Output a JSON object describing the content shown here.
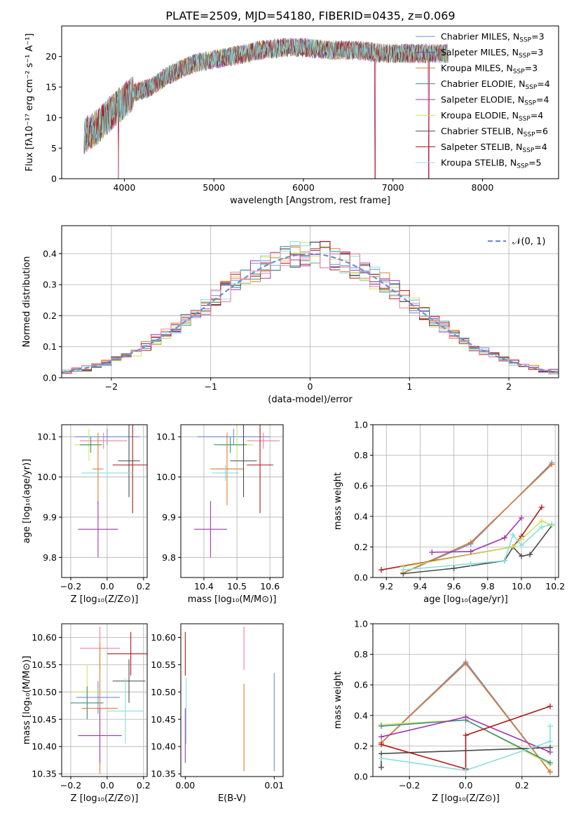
{
  "figure_title": "PLATE=2509, MJD=54180, FIBERID=0435, z=0.069",
  "colors": {
    "c0": "#6a8fd6",
    "c1": "#9f37b0",
    "c2": "#cde561",
    "c3": "#4a4a4a",
    "c4": "#b01818",
    "c5": "#88dfe0",
    "c6": "#3f8f80",
    "c7": "#e07b2a",
    "c8": "#ee7fa0"
  },
  "chart_data": [
    {
      "id": "spectrum",
      "type": "line",
      "title": "PLATE=2509, MJD=54180, FIBERID=0435, z=0.069",
      "xlabel": "wavelength [Angstrom, rest frame]",
      "ylabel": "Flux [fλ10⁻¹⁷ erg cm⁻² s⁻¹ A⁻¹]",
      "xlim": [
        3300,
        8850
      ],
      "ylim": [
        0,
        25
      ],
      "xticks": [
        4000,
        5000,
        6000,
        7000,
        8000
      ],
      "yticks": [
        0,
        5,
        10,
        15,
        20
      ],
      "legend_placement": "top-right",
      "continuum": [
        [
          3550,
          7
        ],
        [
          3700,
          8.5
        ],
        [
          3900,
          11.5
        ],
        [
          4100,
          14
        ],
        [
          4300,
          15
        ],
        [
          4500,
          17
        ],
        [
          4800,
          19
        ],
        [
          5000,
          19.5
        ],
        [
          5200,
          20
        ],
        [
          5500,
          21
        ],
        [
          5800,
          21.5
        ],
        [
          6000,
          21.5
        ],
        [
          6300,
          21
        ],
        [
          6600,
          21
        ],
        [
          6900,
          20.5
        ],
        [
          7200,
          20.5
        ],
        [
          7600,
          20.5
        ]
      ],
      "dips": [
        [
          3934,
          0
        ],
        [
          6800,
          0
        ],
        [
          7400,
          0
        ]
      ],
      "series": [
        {
          "name": "Chabrier MILES, N",
          "sub": "SSP",
          "eq": "=3",
          "color_key": "c0"
        },
        {
          "name": "Salpeter MILES, N",
          "sub": "SSP",
          "eq": "=3",
          "color_key": "c1"
        },
        {
          "name": "Kroupa MILES, N",
          "sub": "SSP",
          "eq": "=3",
          "color_key": "c7"
        },
        {
          "name": "Chabrier ELODIE, N",
          "sub": "SSP",
          "eq": "=4",
          "color_key": "c6"
        },
        {
          "name": "Salpeter ELODIE, N",
          "sub": "SSP",
          "eq": "=4",
          "color_key": "c1"
        },
        {
          "name": "Kroupa ELODIE, N",
          "sub": "SSP",
          "eq": "=4",
          "color_key": "c2"
        },
        {
          "name": "Chabrier STELIB, N",
          "sub": "SSP",
          "eq": "=6",
          "color_key": "c3"
        },
        {
          "name": "Salpeter STELIB, N",
          "sub": "SSP",
          "eq": "=4",
          "color_key": "c4"
        },
        {
          "name": "Kroupa STELIB, N",
          "sub": "SSP",
          "eq": "=5",
          "color_key": "c5"
        }
      ]
    },
    {
      "id": "residuals",
      "type": "line",
      "xlabel": "(data-model)/error",
      "ylabel": "Normed distribution",
      "xlim": [
        -2.5,
        2.5
      ],
      "ylim": [
        0,
        0.49
      ],
      "xticks": [
        -2,
        -1,
        0,
        1,
        2
      ],
      "yticks": [
        0.0,
        0.1,
        0.2,
        0.3,
        0.4
      ],
      "grid": true,
      "bin_width": 0.1,
      "hist_color_keys": [
        "c0",
        "c1",
        "c7",
        "c6",
        "c2",
        "c3",
        "c4",
        "c5",
        "c8"
      ],
      "legend_placement": "top-right",
      "legend": [
        {
          "name": "𝒩(0, 1)",
          "color": "#6a8fd6",
          "dashed": true
        }
      ]
    },
    {
      "id": "age-vs-z",
      "type": "scatter",
      "xlabel": "Z [log₁₀(Z/Z⊙)]",
      "ylabel": "age  [log₁₀(age/yr)]",
      "xlim": [
        -0.25,
        0.22
      ],
      "ylim": [
        9.75,
        10.13
      ],
      "xticks": [
        -0.2,
        0.0,
        0.2
      ],
      "yticks": [
        9.8,
        9.9,
        10.0,
        10.1
      ],
      "grid": true,
      "points": [
        {
          "color_key": "c0",
          "x": 0,
          "xerr": 0.18,
          "y": 10.1,
          "yerr": 0.02
        },
        {
          "color_key": "c8",
          "x": -0.02,
          "xerr": 0.13,
          "y": 10.09,
          "yerr": 0.02
        },
        {
          "color_key": "c2",
          "x": -0.1,
          "xerr": 0.08,
          "y": 10.08,
          "yerr": 0.04
        },
        {
          "color_key": "c6",
          "x": -0.09,
          "xerr": 0.06,
          "y": 10.08,
          "yerr": 0.02
        },
        {
          "color_key": "c7",
          "x": -0.05,
          "xerr": 0.03,
          "y": 10.02,
          "yerr": 0.09
        },
        {
          "color_key": "c3",
          "x": 0.12,
          "xerr": 0.06,
          "y": 10.04,
          "yerr": 0.09
        },
        {
          "color_key": "c4",
          "x": 0.14,
          "xerr": 0.11,
          "y": 10.03,
          "yerr": 0.12
        },
        {
          "color_key": "c5",
          "x": 0,
          "xerr": 0.14,
          "y": 10.01,
          "yerr": 0.02
        },
        {
          "color_key": "c1",
          "x": -0.05,
          "xerr": 0.11,
          "y": 9.87,
          "yerr": 0.07
        }
      ]
    },
    {
      "id": "age-vs-mass",
      "type": "scatter",
      "xlabel": "mass [log₁₀(M/M⊙)]",
      "ylabel": "",
      "xlim": [
        10.33,
        10.64
      ],
      "ylim": [
        9.75,
        10.13
      ],
      "xticks": [
        10.4,
        10.5,
        10.6
      ],
      "yticks": [
        9.8,
        9.9,
        10.0,
        10.1
      ],
      "grid": true,
      "points": [
        {
          "color_key": "c0",
          "x": 10.49,
          "xerr": 0.11,
          "y": 10.1,
          "yerr": 0.02
        },
        {
          "color_key": "c8",
          "x": 10.58,
          "xerr": 0.05,
          "y": 10.09,
          "yerr": 0.02
        },
        {
          "color_key": "c2",
          "x": 10.5,
          "xerr": 0.05,
          "y": 10.08,
          "yerr": 0.04
        },
        {
          "color_key": "c6",
          "x": 10.48,
          "xerr": 0.05,
          "y": 10.08,
          "yerr": 0.02
        },
        {
          "color_key": "c7",
          "x": 10.47,
          "xerr": 0.05,
          "y": 10.02,
          "yerr": 0.09
        },
        {
          "color_key": "c3",
          "x": 10.52,
          "xerr": 0.04,
          "y": 10.04,
          "yerr": 0.09
        },
        {
          "color_key": "c4",
          "x": 10.57,
          "xerr": 0.04,
          "y": 10.03,
          "yerr": 0.12
        },
        {
          "color_key": "c5",
          "x": 10.465,
          "xerr": 0.04,
          "y": 10.01,
          "yerr": 0.02
        },
        {
          "color_key": "c1",
          "x": 10.42,
          "xerr": 0.05,
          "y": 9.87,
          "yerr": 0.07
        }
      ]
    },
    {
      "id": "mass-weight-vs-age",
      "type": "line",
      "xlabel": "age  [log₁₀(age/yr)]",
      "ylabel": "mass weight",
      "xlim": [
        9.12,
        10.22
      ],
      "ylim": [
        0,
        1
      ],
      "xticks": [
        9.2,
        9.4,
        9.6,
        9.8,
        10.0,
        10.2
      ],
      "yticks": [
        0.0,
        0.2,
        0.4,
        0.6,
        0.8,
        1.0
      ],
      "grid": true,
      "series": [
        {
          "color_key": "c0",
          "x": [
            9.3,
            9.7,
            10.18
          ],
          "y": [
            0.03,
            0.22,
            0.75
          ]
        },
        {
          "color_key": "c7",
          "x": [
            9.3,
            9.7,
            10.18
          ],
          "y": [
            0.03,
            0.23,
            0.74
          ]
        },
        {
          "color_key": "c1",
          "x": [
            9.47,
            9.7,
            9.9,
            10.0
          ],
          "y": [
            0.165,
            0.17,
            0.26,
            0.39
          ]
        },
        {
          "color_key": "c3",
          "x": [
            9.3,
            9.6,
            9.9,
            9.95,
            10.0,
            10.05,
            10.18
          ],
          "y": [
            0.025,
            0.06,
            0.11,
            0.2,
            0.14,
            0.15,
            0.34
          ]
        },
        {
          "color_key": "c4",
          "x": [
            9.17,
            9.95,
            10.0,
            10.12
          ],
          "y": [
            0.05,
            0.2,
            0.27,
            0.46
          ]
        },
        {
          "color_key": "c2",
          "x": [
            9.3,
            9.95,
            10.0,
            10.12,
            10.18
          ],
          "y": [
            0.07,
            0.2,
            0.25,
            0.37,
            0.34
          ]
        },
        {
          "color_key": "c5",
          "x": [
            9.3,
            9.7,
            9.9,
            9.95,
            10.0,
            10.12,
            10.18
          ],
          "y": [
            0.05,
            0.09,
            0.11,
            0.28,
            0.21,
            0.33,
            0.35
          ]
        }
      ]
    },
    {
      "id": "mass-vs-z",
      "type": "scatter",
      "xlabel": "Z [log₁₀(Z/Z⊙)]",
      "ylabel": "mass [log₁₀(M/M⊙)]",
      "xlim": [
        -0.25,
        0.22
      ],
      "ylim": [
        10.345,
        10.625
      ],
      "xticks": [
        -0.2,
        0.0,
        0.2
      ],
      "yticks": [
        10.35,
        10.4,
        10.45,
        10.5,
        10.55,
        10.6
      ],
      "grid": true,
      "points": [
        {
          "color_key": "c0",
          "x": -0.05,
          "xerr": 0.12,
          "y": 10.49,
          "yerr": 0.03
        },
        {
          "color_key": "c8",
          "x": -0.04,
          "xerr": 0.11,
          "y": 10.58,
          "yerr": 0.04
        },
        {
          "color_key": "c2",
          "x": -0.11,
          "xerr": 0.08,
          "y": 10.5,
          "yerr": 0.05
        },
        {
          "color_key": "c6",
          "x": -0.11,
          "xerr": 0.09,
          "y": 10.48,
          "yerr": 0.03
        },
        {
          "color_key": "c7",
          "x": -0.04,
          "xerr": 0.1,
          "y": 10.47,
          "yerr": 0.12
        },
        {
          "color_key": "c3",
          "x": 0.12,
          "xerr": 0.09,
          "y": 10.52,
          "yerr": 0.04
        },
        {
          "color_key": "c4",
          "x": 0.13,
          "xerr": 0.13,
          "y": 10.57,
          "yerr": 0.04
        },
        {
          "color_key": "c5",
          "x": 0.1,
          "xerr": 0.1,
          "y": 10.465,
          "yerr": 0.06
        },
        {
          "color_key": "c1",
          "x": -0.04,
          "xerr": 0.12,
          "y": 10.42,
          "yerr": 0.05
        }
      ]
    },
    {
      "id": "mass-vs-ebv",
      "type": "scatter",
      "xlabel": "E(B-V)",
      "ylabel": "",
      "xlim": [
        -0.0005,
        0.011
      ],
      "ylim": [
        10.345,
        10.625
      ],
      "xticks": [
        0.0,
        0.01
      ],
      "yticks": [
        10.35,
        10.4,
        10.45,
        10.5,
        10.55,
        10.6
      ],
      "grid": false,
      "points": [
        {
          "color_key": "c4",
          "x": 0,
          "xerr": 0,
          "y": 10.57,
          "yerr": 0.04
        },
        {
          "color_key": "c5",
          "x": 0.0001,
          "xerr": 0,
          "y": 10.465,
          "yerr": 0.06
        },
        {
          "color_key": "c1",
          "x": 0,
          "xerr": 0,
          "y": 10.42,
          "yerr": 0.05
        },
        {
          "color_key": "c8",
          "x": 0.0066,
          "xerr": 0,
          "y": 10.58,
          "yerr": 0.04
        },
        {
          "color_key": "c7",
          "x": 0.0066,
          "xerr": 0,
          "y": 10.435,
          "yerr": 0.08
        },
        {
          "color_key": "c0",
          "x": 0.01,
          "xerr": 0,
          "y": 10.445,
          "yerr": 0.09
        }
      ]
    },
    {
      "id": "mass-weight-vs-z",
      "type": "line",
      "xlabel": "Z [log₁₀(Z/Z⊙)]",
      "ylabel": "mass weight",
      "xlim": [
        -0.33,
        0.33
      ],
      "ylim": [
        0,
        1
      ],
      "xticks": [
        -0.2,
        0.0,
        0.2
      ],
      "yticks": [
        0.0,
        0.2,
        0.4,
        0.6,
        0.8,
        1.0
      ],
      "grid": true,
      "series": [
        {
          "color_key": "c0",
          "x": [
            -0.3,
            0,
            0.3
          ],
          "y": [
            0.22,
            0.75,
            0.03
          ]
        },
        {
          "color_key": "c7",
          "x": [
            -0.3,
            0,
            0.3
          ],
          "y": [
            0.22,
            0.74,
            0.03
          ]
        },
        {
          "color_key": "c2",
          "x": [
            -0.3,
            0,
            0.3
          ],
          "y": [
            0.34,
            0.37,
            0.08
          ]
        },
        {
          "color_key": "c6",
          "x": [
            -0.3,
            0,
            0.3
          ],
          "y": [
            0.33,
            0.37,
            0.09
          ]
        },
        {
          "color_key": "c1",
          "x": [
            -0.3,
            0,
            0.3
          ],
          "y": [
            0.26,
            0.39,
            0.16
          ]
        },
        {
          "color_key": "c3",
          "x": [
            -0.3,
            -0.3,
            0.3
          ],
          "y": [
            0.06,
            0.15,
            0.19
          ]
        },
        {
          "color_key": "c4",
          "x": [
            -0.3,
            0,
            0,
            0.3
          ],
          "y": [
            0.21,
            0.05,
            0.27,
            0.46
          ]
        },
        {
          "color_key": "c5",
          "x": [
            -0.3,
            0,
            0.3,
            0.3
          ],
          "y": [
            0.12,
            0.04,
            0.23,
            0.33
          ]
        }
      ]
    }
  ]
}
